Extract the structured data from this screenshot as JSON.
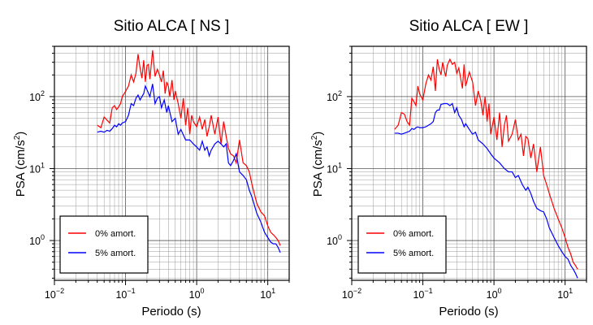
{
  "chart_data": [
    {
      "type": "line",
      "title": "Sitio ALCA [ NS ]",
      "xlabel": "Periodo (s)",
      "ylabel": "PSA (cm/s",
      "ylabel_sup": "2",
      "ylabel_close": ")",
      "x_scale": "log",
      "y_scale": "log",
      "xlim": [
        0.01,
        20
      ],
      "ylim": [
        0.28,
        500
      ],
      "grid": true,
      "legend_position": "bottom-left",
      "x_ticks": [
        {
          "value": 0.01,
          "base": "10",
          "exp": "−2"
        },
        {
          "value": 0.1,
          "base": "10",
          "exp": "−1"
        },
        {
          "value": 1,
          "base": "10",
          "exp": "0"
        },
        {
          "value": 10,
          "base": "10",
          "exp": "1"
        }
      ],
      "y_ticks": [
        {
          "value": 1,
          "base": "10",
          "exp": "0"
        },
        {
          "value": 10,
          "base": "10",
          "exp": "1"
        },
        {
          "value": 100,
          "base": "10",
          "exp": "2"
        }
      ],
      "series": [
        {
          "name": "0% amort.",
          "color": "#ff0000",
          "x": [
            0.04,
            0.045,
            0.05,
            0.055,
            0.06,
            0.065,
            0.07,
            0.075,
            0.08,
            0.085,
            0.09,
            0.1,
            0.11,
            0.12,
            0.13,
            0.14,
            0.15,
            0.16,
            0.17,
            0.18,
            0.19,
            0.2,
            0.21,
            0.22,
            0.24,
            0.26,
            0.28,
            0.3,
            0.32,
            0.34,
            0.36,
            0.38,
            0.4,
            0.42,
            0.45,
            0.48,
            0.5,
            0.55,
            0.6,
            0.65,
            0.7,
            0.75,
            0.8,
            0.85,
            0.9,
            1.0,
            1.1,
            1.2,
            1.3,
            1.4,
            1.5,
            1.6,
            1.8,
            2.0,
            2.2,
            2.4,
            2.6,
            2.8,
            3.0,
            3.3,
            3.6,
            4.0,
            4.5,
            5.0,
            5.5,
            6.0,
            7.0,
            8.0,
            9.0,
            10.0,
            11.0,
            12.0,
            13.0,
            14.0,
            15.0
          ],
          "y": [
            40,
            37,
            52,
            47,
            43,
            70,
            75,
            66,
            72,
            80,
            100,
            118,
            140,
            200,
            160,
            210,
            390,
            250,
            180,
            320,
            160,
            270,
            280,
            175,
            440,
            190,
            240,
            200,
            160,
            230,
            110,
            160,
            140,
            100,
            170,
            90,
            120,
            80,
            50,
            95,
            40,
            70,
            30,
            55,
            45,
            38,
            52,
            35,
            48,
            28,
            38,
            55,
            30,
            52,
            22,
            45,
            28,
            19,
            16,
            15,
            12,
            25,
            12,
            11,
            9,
            6,
            3.3,
            2.5,
            2.2,
            1.6,
            1.3,
            1.2,
            1.1,
            1.0,
            0.85
          ]
        },
        {
          "name": "5% amort.",
          "color": "#0000ff",
          "x": [
            0.04,
            0.045,
            0.05,
            0.055,
            0.06,
            0.065,
            0.07,
            0.075,
            0.08,
            0.085,
            0.09,
            0.1,
            0.11,
            0.12,
            0.13,
            0.14,
            0.15,
            0.16,
            0.17,
            0.18,
            0.19,
            0.2,
            0.22,
            0.24,
            0.26,
            0.28,
            0.3,
            0.32,
            0.35,
            0.38,
            0.4,
            0.45,
            0.5,
            0.55,
            0.6,
            0.7,
            0.8,
            0.9,
            1.0,
            1.1,
            1.2,
            1.3,
            1.4,
            1.5,
            1.6,
            1.8,
            2.0,
            2.2,
            2.4,
            2.6,
            2.8,
            3.0,
            3.3,
            3.6,
            4.0,
            4.5,
            5.0,
            5.5,
            6.0,
            7.0,
            8.0,
            9.0,
            10.0,
            11.0,
            12.0,
            13.0,
            14.0,
            15.0
          ],
          "y": [
            32,
            33,
            32,
            34,
            33,
            36,
            40,
            38,
            42,
            40,
            43,
            45,
            55,
            80,
            75,
            95,
            105,
            90,
            100,
            110,
            140,
            125,
            100,
            150,
            80,
            95,
            100,
            70,
            90,
            60,
            75,
            45,
            50,
            30,
            35,
            25,
            25,
            22,
            20,
            18,
            24,
            18,
            20,
            15,
            18,
            22,
            24,
            22,
            20,
            22,
            12,
            11,
            13,
            16,
            9,
            8,
            7,
            5,
            4,
            2.4,
            1.8,
            1.3,
            1.1,
            0.95,
            0.9,
            0.9,
            0.8,
            0.68
          ]
        }
      ]
    },
    {
      "type": "line",
      "title": "Sitio ALCA [ EW ]",
      "xlabel": "Periodo (s)",
      "ylabel": "PSA (cm/s",
      "ylabel_sup": "2",
      "ylabel_close": ")",
      "x_scale": "log",
      "y_scale": "log",
      "xlim": [
        0.01,
        20
      ],
      "ylim": [
        0.28,
        500
      ],
      "grid": true,
      "legend_position": "bottom-left",
      "x_ticks": [
        {
          "value": 0.01,
          "base": "10",
          "exp": "−2"
        },
        {
          "value": 0.1,
          "base": "10",
          "exp": "−1"
        },
        {
          "value": 1,
          "base": "10",
          "exp": "0"
        },
        {
          "value": 10,
          "base": "10",
          "exp": "1"
        }
      ],
      "y_ticks": [
        {
          "value": 1,
          "base": "10",
          "exp": "0"
        },
        {
          "value": 10,
          "base": "10",
          "exp": "1"
        },
        {
          "value": 100,
          "base": "10",
          "exp": "2"
        }
      ],
      "series": [
        {
          "name": "0% amort.",
          "color": "#ff0000",
          "x": [
            0.04,
            0.045,
            0.05,
            0.055,
            0.06,
            0.065,
            0.07,
            0.075,
            0.08,
            0.085,
            0.09,
            0.1,
            0.11,
            0.12,
            0.13,
            0.14,
            0.15,
            0.16,
            0.17,
            0.18,
            0.19,
            0.2,
            0.21,
            0.22,
            0.24,
            0.26,
            0.28,
            0.3,
            0.32,
            0.34,
            0.36,
            0.38,
            0.4,
            0.45,
            0.5,
            0.55,
            0.6,
            0.65,
            0.7,
            0.75,
            0.8,
            0.85,
            0.9,
            1.0,
            1.1,
            1.2,
            1.3,
            1.4,
            1.5,
            1.6,
            1.8,
            2.0,
            2.2,
            2.4,
            2.6,
            2.8,
            3.0,
            3.3,
            3.6,
            4.0,
            4.5,
            5.0,
            5.5,
            6.0,
            7.0,
            8.0,
            9.0,
            10.0,
            11.0,
            12.0,
            13.0,
            14.0,
            15.0
          ],
          "y": [
            35,
            40,
            60,
            57,
            45,
            40,
            95,
            85,
            75,
            140,
            110,
            90,
            150,
            200,
            170,
            260,
            120,
            330,
            240,
            200,
            300,
            230,
            190,
            270,
            330,
            280,
            300,
            210,
            250,
            180,
            130,
            280,
            140,
            220,
            160,
            75,
            120,
            90,
            55,
            100,
            45,
            80,
            30,
            52,
            25,
            60,
            20,
            40,
            55,
            24,
            30,
            48,
            25,
            30,
            15,
            28,
            26,
            14,
            22,
            9,
            20,
            8,
            6,
            4.5,
            2.8,
            2.0,
            1.5,
            1.1,
            0.8,
            0.65,
            0.5,
            0.45,
            0.4
          ]
        },
        {
          "name": "5% amort.",
          "color": "#0000ff",
          "x": [
            0.04,
            0.045,
            0.05,
            0.055,
            0.06,
            0.065,
            0.07,
            0.075,
            0.08,
            0.085,
            0.09,
            0.1,
            0.11,
            0.12,
            0.13,
            0.14,
            0.15,
            0.16,
            0.17,
            0.18,
            0.2,
            0.22,
            0.24,
            0.26,
            0.28,
            0.3,
            0.32,
            0.35,
            0.38,
            0.4,
            0.45,
            0.5,
            0.55,
            0.6,
            0.7,
            0.8,
            0.9,
            1.0,
            1.2,
            1.4,
            1.6,
            1.8,
            2.0,
            2.2,
            2.5,
            2.8,
            3.0,
            3.3,
            3.6,
            4.0,
            4.5,
            5.0,
            5.5,
            6.0,
            7.0,
            8.0,
            9.0,
            10.0,
            11.0,
            12.0,
            13.0,
            14.0,
            15.0
          ],
          "y": [
            31,
            31,
            30,
            31,
            32,
            33,
            36,
            35,
            37,
            38,
            37,
            37,
            38,
            40,
            42,
            45,
            60,
            65,
            65,
            78,
            80,
            80,
            75,
            80,
            60,
            70,
            55,
            48,
            38,
            42,
            35,
            30,
            32,
            25,
            22,
            19,
            16,
            14,
            12,
            10,
            9,
            9,
            7.5,
            8,
            6,
            5,
            5.5,
            4.5,
            3.5,
            2.8,
            2.6,
            2.5,
            2.0,
            1.5,
            1.1,
            0.85,
            0.7,
            0.6,
            0.55,
            0.45,
            0.4,
            0.35,
            0.3
          ]
        }
      ]
    }
  ]
}
